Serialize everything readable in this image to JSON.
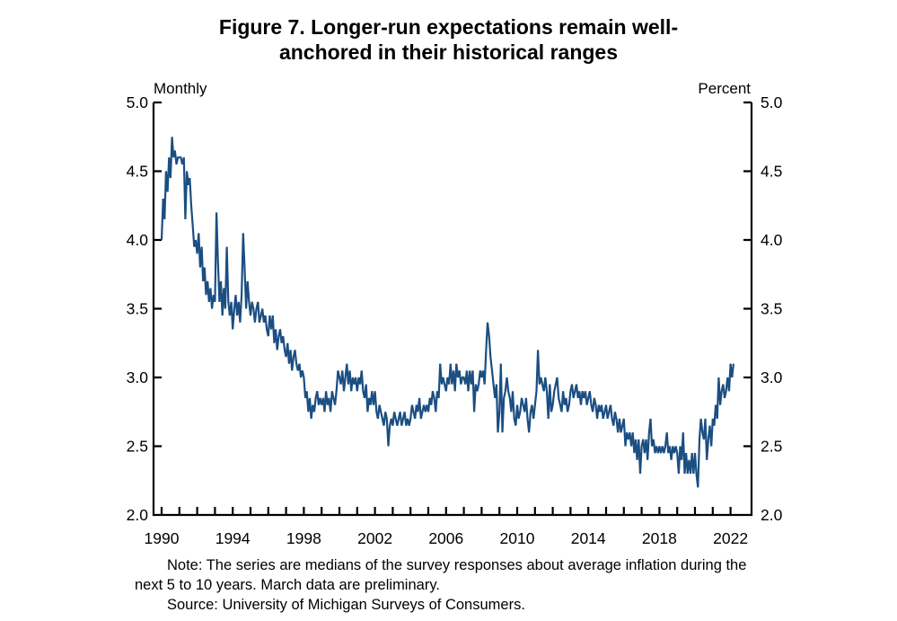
{
  "title": {
    "line1": "Figure 7. Longer-run expectations remain well-",
    "line2": "anchored in their historical ranges"
  },
  "notes": {
    "note": "Note: The series are medians of the survey responses about average inflation during the next 5 to 10 years. March data are preliminary.",
    "source": "Source: University of Michigan Surveys of Consumers."
  },
  "chart_data": {
    "type": "line",
    "title": "Figure 7. Longer-run expectations remain well-anchored in their historical ranges",
    "frequency_label": "Monthly",
    "unit_label": "Percent",
    "xlabel": "",
    "ylabel": "Percent",
    "x_start": "1990-01",
    "x_end": "2022-03",
    "x_tick_years_labeled": [
      1990,
      1994,
      1998,
      2002,
      2006,
      2010,
      2014,
      2018,
      2022
    ],
    "x_minor_ticks": "every year 1990-2022, drawn inward",
    "ylim": [
      2.0,
      5.0
    ],
    "y_ticks": [
      "5.0",
      "4.5",
      "4.0",
      "3.5",
      "3.0",
      "2.5",
      "2.0"
    ],
    "y_axis_sides": "both",
    "grid": false,
    "legend": false,
    "line_color": "#1b4e82",
    "axis_color": "#000000",
    "series": [
      {
        "name": "Median expected inflation over the next 5 to 10 years",
        "cadence": "monthly",
        "start_year": 1990,
        "start_month": 1,
        "values": [
          4.0,
          4.3,
          4.15,
          4.5,
          4.35,
          4.6,
          4.45,
          4.75,
          4.6,
          4.65,
          4.55,
          4.6,
          4.6,
          4.6,
          4.55,
          4.6,
          4.15,
          4.5,
          4.4,
          4.45,
          4.25,
          4.1,
          3.95,
          4.0,
          3.9,
          4.05,
          3.8,
          3.95,
          3.7,
          3.8,
          3.6,
          3.7,
          3.55,
          3.65,
          3.5,
          3.6,
          3.55,
          4.2,
          3.85,
          3.55,
          3.7,
          3.45,
          3.65,
          3.5,
          3.95,
          3.55,
          3.45,
          3.55,
          3.35,
          3.5,
          3.6,
          3.45,
          3.55,
          3.4,
          3.6,
          4.05,
          3.8,
          3.5,
          3.7,
          3.55,
          3.45,
          3.55,
          3.5,
          3.4,
          3.5,
          3.55,
          3.4,
          3.45,
          3.5,
          3.4,
          3.45,
          3.35,
          3.3,
          3.45,
          3.35,
          3.45,
          3.25,
          3.35,
          3.2,
          3.3,
          3.35,
          3.25,
          3.3,
          3.2,
          3.15,
          3.25,
          3.1,
          3.2,
          3.05,
          3.15,
          3.2,
          3.1,
          3.05,
          3.1,
          3.0,
          3.05,
          3.0,
          2.85,
          2.9,
          2.75,
          2.85,
          2.7,
          2.8,
          2.75,
          2.85,
          2.9,
          2.8,
          2.85,
          2.8,
          2.85,
          2.75,
          2.9,
          2.8,
          2.85,
          2.75,
          2.9,
          2.85,
          2.8,
          2.9,
          3.05,
          3.0,
          2.95,
          3.05,
          2.9,
          3.0,
          3.1,
          2.95,
          3.05,
          2.9,
          3.0,
          2.95,
          3.0,
          2.9,
          3.0,
          2.95,
          3.05,
          2.9,
          2.85,
          2.95,
          2.75,
          2.85,
          2.8,
          2.9,
          2.8,
          2.9,
          2.75,
          2.7,
          2.8,
          2.75,
          2.7,
          2.65,
          2.75,
          2.7,
          2.5,
          2.65,
          2.7,
          2.65,
          2.75,
          2.7,
          2.65,
          2.7,
          2.75,
          2.65,
          2.7,
          2.75,
          2.65,
          2.7,
          2.65,
          2.7,
          2.8,
          2.75,
          2.7,
          2.8,
          2.75,
          2.85,
          2.7,
          2.75,
          2.8,
          2.75,
          2.8,
          2.75,
          2.85,
          2.8,
          2.9,
          2.85,
          2.75,
          2.9,
          2.85,
          3.1,
          2.95,
          3.0,
          2.95,
          2.9,
          3.0,
          2.95,
          3.1,
          2.95,
          3.05,
          2.9,
          3.1,
          3.0,
          3.05,
          2.95,
          3.0,
          3.0,
          2.95,
          3.05,
          2.9,
          3.05,
          2.95,
          3.05,
          2.75,
          2.95,
          2.9,
          2.95,
          3.05,
          3.0,
          3.05,
          2.95,
          3.2,
          3.4,
          3.3,
          3.15,
          3.05,
          2.95,
          2.85,
          2.95,
          2.6,
          2.75,
          3.1,
          2.6,
          2.85,
          2.9,
          3.0,
          2.9,
          2.85,
          2.75,
          2.9,
          2.7,
          2.65,
          2.8,
          2.7,
          2.75,
          2.85,
          2.8,
          2.75,
          2.85,
          2.7,
          2.6,
          2.75,
          2.8,
          2.7,
          2.8,
          2.9,
          3.2,
          2.95,
          3.0,
          2.95,
          2.9,
          3.0,
          2.9,
          2.7,
          2.95,
          2.75,
          2.8,
          2.9,
          2.95,
          3.0,
          2.85,
          2.8,
          2.75,
          2.9,
          2.8,
          2.85,
          2.75,
          2.8,
          2.9,
          2.95,
          2.85,
          2.9,
          2.95,
          2.85,
          2.9,
          2.8,
          2.9,
          2.85,
          2.9,
          2.8,
          2.85,
          2.9,
          2.8,
          2.75,
          2.85,
          2.8,
          2.7,
          2.8,
          2.75,
          2.8,
          2.7,
          2.75,
          2.8,
          2.7,
          2.75,
          2.8,
          2.7,
          2.65,
          2.75,
          2.7,
          2.6,
          2.7,
          2.6,
          2.65,
          2.7,
          2.5,
          2.6,
          2.55,
          2.6,
          2.5,
          2.6,
          2.45,
          2.55,
          2.4,
          2.55,
          2.3,
          2.5,
          2.55,
          2.45,
          2.55,
          2.4,
          2.6,
          2.7,
          2.5,
          2.55,
          2.45,
          2.5,
          2.45,
          2.5,
          2.45,
          2.5,
          2.45,
          2.5,
          2.6,
          2.45,
          2.5,
          2.4,
          2.5,
          2.45,
          2.5,
          2.45,
          2.3,
          2.5,
          2.4,
          2.6,
          2.3,
          2.45,
          2.3,
          2.4,
          2.3,
          2.45,
          2.3,
          2.45,
          2.3,
          2.2,
          2.55,
          2.7,
          2.6,
          2.55,
          2.7,
          2.4,
          2.55,
          2.65,
          2.5,
          2.7,
          2.65,
          2.8,
          2.7,
          3.0,
          2.8,
          2.9,
          2.95,
          2.85,
          2.9,
          3.0,
          2.9,
          3.1,
          3.0,
          3.1
        ]
      }
    ]
  }
}
